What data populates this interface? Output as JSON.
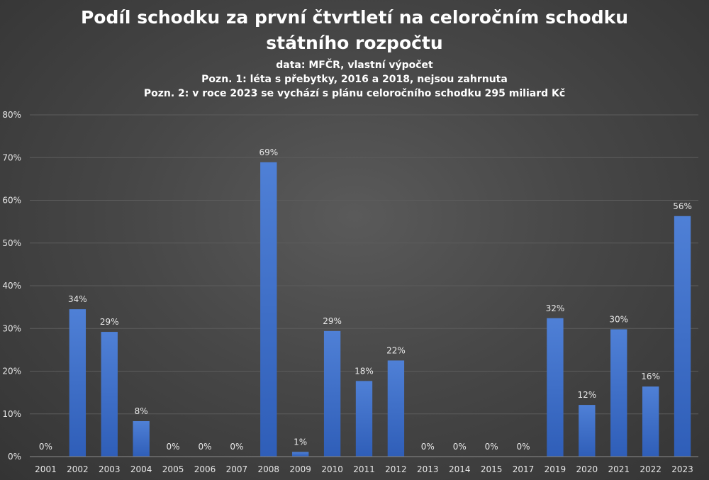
{
  "title": {
    "line1": "Podíl schodku za první čtvrtletí na celoročním schodku",
    "line2": "státního rozpočtu"
  },
  "subtitle": {
    "source": "data: MFČR, vlastní výpočet",
    "note1": "Pozn. 1: léta s přebytky, 2016 a 2018, nejsou zahrnuta",
    "note2": "Pozn. 2: v roce 2023 se vychází s plánu celoročního schodku 295 miliard Kč"
  },
  "colors": {
    "bar_top": "#4f80d6",
    "bar_bottom": "#2f5eb8",
    "grid": "#5c5c5c",
    "axis": "#8a8a8a"
  },
  "chart_data": {
    "type": "bar",
    "categories": [
      "2001",
      "2002",
      "2003",
      "2004",
      "2005",
      "2006",
      "2007",
      "2008",
      "2009",
      "2010",
      "2011",
      "2012",
      "2013",
      "2014",
      "2015",
      "2017",
      "2019",
      "2020",
      "2021",
      "2022",
      "2023"
    ],
    "values": [
      0,
      34.5,
      29.2,
      8.3,
      0,
      0,
      0,
      68.9,
      1.1,
      29.4,
      17.7,
      22.5,
      0,
      0,
      0,
      0,
      32.4,
      12.1,
      29.8,
      16.4,
      56.3
    ],
    "data_labels": [
      "0%",
      "34%",
      "29%",
      "8%",
      "0%",
      "0%",
      "0%",
      "69%",
      "1%",
      "29%",
      "18%",
      "22%",
      "0%",
      "0%",
      "0%",
      "0%",
      "32%",
      "12%",
      "30%",
      "16%",
      "56%"
    ],
    "ylim": [
      0,
      80
    ],
    "yticks": [
      "0%",
      "10%",
      "20%",
      "30%",
      "40%",
      "50%",
      "60%",
      "70%",
      "80%"
    ],
    "grid": true,
    "legend": "none"
  }
}
